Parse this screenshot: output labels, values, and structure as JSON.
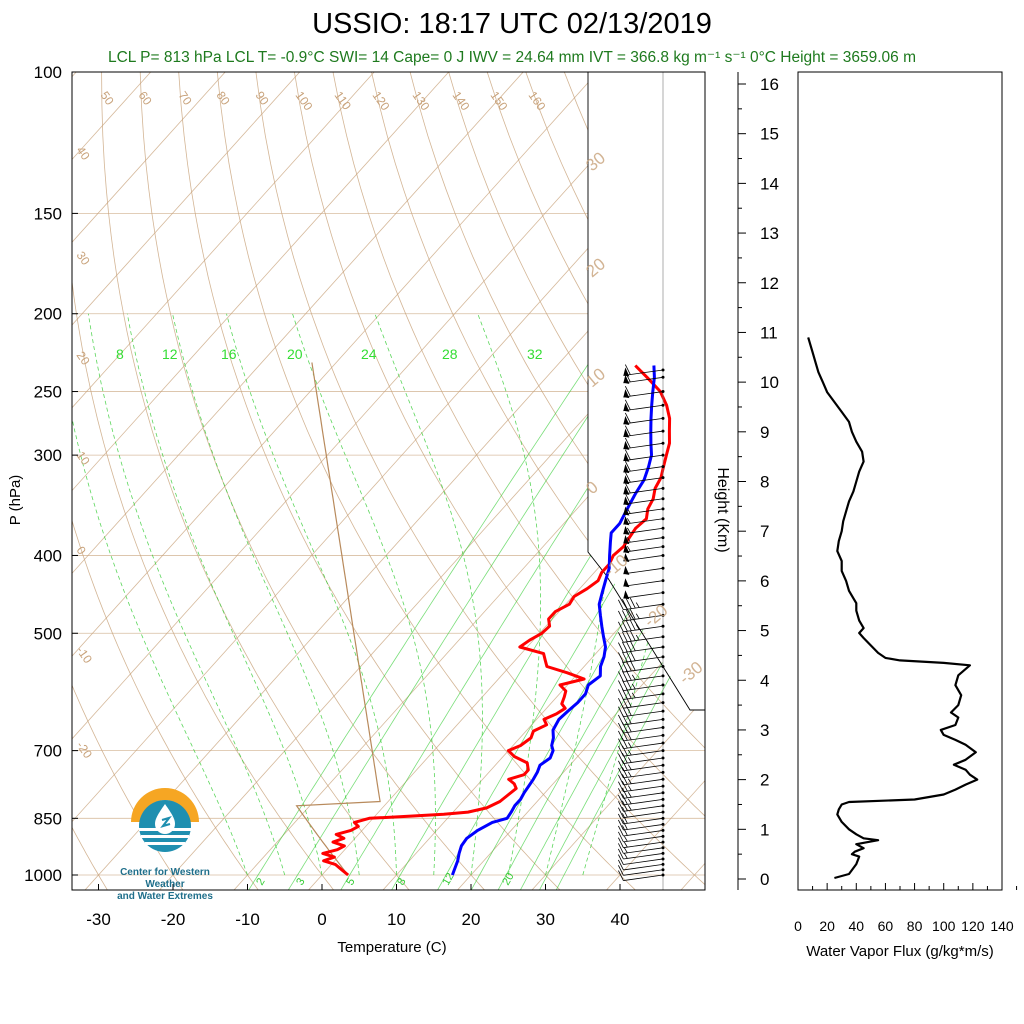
{
  "header": {
    "title": "USSIO: 18:17 UTC 02/13/2019",
    "subtitle": "LCL P= 813 hPa  LCL T= -0.9°C  SWI= 14  Cape= 0 J  IWV = 24.64 mm  IVT = 366.8 kg m⁻¹ s⁻¹  0°C Height = 3659.06 m"
  },
  "logo": {
    "line1": "Center for Western Weather",
    "line2": "and Water Extremes"
  },
  "colors": {
    "temperature": "#ff0000",
    "dewpoint": "#0000ff",
    "dry_adiabat": "#c8a27a",
    "mixing_ratio": "#33cc33",
    "flux": "#000000",
    "subtitle": "#1e7a1e"
  },
  "chart_data": [
    {
      "type": "line",
      "name": "skew-t",
      "xlabel": "Temperature (C)",
      "ylabel": "P (hPa)",
      "ylabel_right": "Height (Km)",
      "x_ticks": [
        "-30",
        "-20",
        "-10",
        "0",
        "10",
        "20",
        "30",
        "40"
      ],
      "y_ticks": [
        "100",
        "150",
        "200",
        "250",
        "300",
        "400",
        "500",
        "700",
        "850",
        "1000"
      ],
      "height_ticks": [
        "0",
        "1",
        "2",
        "3",
        "4",
        "5",
        "6",
        "7",
        "8",
        "9",
        "10",
        "11",
        "12",
        "13",
        "14",
        "15",
        "16"
      ],
      "theta_labels": [
        "50",
        "60",
        "70",
        "80",
        "90",
        "100",
        "110",
        "120",
        "130",
        "140",
        "150",
        "160"
      ],
      "theta_left_labels": [
        "40",
        "30",
        "20",
        "10",
        "0",
        "-10",
        "-20"
      ],
      "theta_e_labels": [
        "30",
        "20",
        "10",
        "0",
        "-10",
        "-20",
        "-30"
      ],
      "mixing_ratio_top_labels": [
        "8",
        "12",
        "16",
        "20",
        "24",
        "28",
        "32"
      ],
      "mixing_ratio_bottom_labels": [
        "2",
        "3",
        "5",
        "8",
        "12",
        "20"
      ],
      "series": [
        {
          "key": "temperature",
          "points": [
            [
              1000,
              3.5
            ],
            [
              985,
              2.0
            ],
            [
              970,
              0.5
            ],
            [
              960,
              -1.5
            ],
            [
              950,
              -0.5
            ],
            [
              940,
              -2.5
            ],
            [
              930,
              -1.0
            ],
            [
              920,
              -0.5
            ],
            [
              910,
              -2.5
            ],
            [
              900,
              -1.5
            ],
            [
              890,
              -3.0
            ],
            [
              880,
              -1.5
            ],
            [
              870,
              -1.0
            ],
            [
              860,
              -2.0
            ],
            [
              850,
              -0.5
            ],
            [
              845,
              4.5
            ],
            [
              840,
              9.0
            ],
            [
              835,
              12.0
            ],
            [
              825,
              14.0
            ],
            [
              810,
              15.0
            ],
            [
              795,
              15.3
            ],
            [
              780,
              15.6
            ],
            [
              770,
              14.8
            ],
            [
              760,
              13.5
            ],
            [
              750,
              15.0
            ],
            [
              740,
              15.0
            ],
            [
              725,
              14.0
            ],
            [
              712,
              11.5
            ],
            [
              700,
              10.0
            ],
            [
              690,
              11.0
            ],
            [
              675,
              11.5
            ],
            [
              662,
              11.0
            ],
            [
              650,
              12.0
            ],
            [
              640,
              11.0
            ],
            [
              630,
              12.0
            ],
            [
              620,
              12.5
            ],
            [
              612,
              11.5
            ],
            [
              600,
              11.0
            ],
            [
              590,
              10.5
            ],
            [
              580,
              9.0
            ],
            [
              570,
              11.5
            ],
            [
              560,
              8.5
            ],
            [
              550,
              5.0
            ],
            [
              540,
              4.0
            ],
            [
              530,
              3.0
            ],
            [
              520,
              -1.0
            ],
            [
              510,
              -0.5
            ],
            [
              500,
              0.3
            ],
            [
              490,
              0.5
            ],
            [
              480,
              -0.5
            ],
            [
              470,
              -0.5
            ],
            [
              460,
              0.5
            ],
            [
              450,
              0.2
            ],
            [
              440,
              1.0
            ],
            [
              430,
              1.5
            ],
            [
              420,
              1.0
            ],
            [
              410,
              1.0
            ],
            [
              400,
              0.5
            ],
            [
              390,
              0.8
            ],
            [
              380,
              0.5
            ],
            [
              370,
              0.2
            ],
            [
              360,
              0.5
            ],
            [
              350,
              -0.5
            ],
            [
              340,
              -1.0
            ],
            [
              330,
              -2.0
            ],
            [
              320,
              -2.5
            ],
            [
              310,
              -3.5
            ],
            [
              300,
              -4.5
            ],
            [
              290,
              -5.5
            ],
            [
              280,
              -7.0
            ],
            [
              270,
              -8.5
            ],
            [
              260,
              -10.5
            ],
            [
              250,
              -13.0
            ],
            [
              240,
              -16.5
            ],
            [
              232,
              -19.5
            ]
          ]
        },
        {
          "key": "dewpoint",
          "points": [
            [
              1000,
              17.5
            ],
            [
              980,
              17.0
            ],
            [
              960,
              16.5
            ],
            [
              940,
              15.8
            ],
            [
              920,
              15.2
            ],
            [
              900,
              15.0
            ],
            [
              880,
              15.5
            ],
            [
              860,
              16.5
            ],
            [
              850,
              18.0
            ],
            [
              835,
              17.8
            ],
            [
              820,
              17.5
            ],
            [
              805,
              17.5
            ],
            [
              790,
              17.2
            ],
            [
              775,
              17.0
            ],
            [
              760,
              16.8
            ],
            [
              745,
              16.5
            ],
            [
              730,
              16.0
            ],
            [
              715,
              16.5
            ],
            [
              700,
              16.0
            ],
            [
              690,
              15.2
            ],
            [
              675,
              14.5
            ],
            [
              660,
              13.5
            ],
            [
              640,
              13.0
            ],
            [
              625,
              13.2
            ],
            [
              610,
              13.5
            ],
            [
              595,
              13.5
            ],
            [
              580,
              12.8
            ],
            [
              565,
              13.3
            ],
            [
              550,
              12.2
            ],
            [
              535,
              11.5
            ],
            [
              520,
              10.5
            ],
            [
              505,
              9.0
            ],
            [
              490,
              7.5
            ],
            [
              475,
              6.0
            ],
            [
              460,
              4.5
            ],
            [
              445,
              3.5
            ],
            [
              430,
              2.5
            ],
            [
              415,
              1.5
            ],
            [
              400,
              0.0
            ],
            [
              385,
              -1.5
            ],
            [
              375,
              -2.5
            ],
            [
              365,
              -2.5
            ],
            [
              355,
              -3.0
            ],
            [
              345,
              -3.5
            ],
            [
              335,
              -4.0
            ],
            [
              322,
              -4.5
            ],
            [
              310,
              -5.5
            ],
            [
              300,
              -6.5
            ],
            [
              290,
              -8.0
            ],
            [
              280,
              -9.5
            ],
            [
              270,
              -11.0
            ],
            [
              260,
              -12.5
            ],
            [
              250,
              -14.0
            ],
            [
              240,
              -15.5
            ],
            [
              232,
              -17.0
            ]
          ]
        }
      ],
      "wind_barbs": {
        "levels": [
          1000,
          985,
          970,
          955,
          940,
          925,
          910,
          895,
          880,
          865,
          850,
          835,
          820,
          805,
          790,
          775,
          760,
          745,
          730,
          715,
          700,
          685,
          670,
          655,
          640,
          625,
          610,
          595,
          580,
          565,
          550,
          535,
          520,
          505,
          490,
          475,
          460,
          445,
          430,
          415,
          400,
          390,
          380,
          370,
          360,
          350,
          340,
          330,
          320,
          310,
          300,
          290,
          280,
          270,
          260,
          250,
          240,
          235
        ],
        "speeds_kt": [
          10,
          10,
          10,
          10,
          15,
          15,
          15,
          15,
          20,
          20,
          20,
          20,
          25,
          25,
          25,
          25,
          25,
          25,
          25,
          25,
          25,
          25,
          30,
          30,
          30,
          30,
          30,
          35,
          35,
          35,
          40,
          40,
          40,
          45,
          45,
          45,
          45,
          50,
          50,
          50,
          50,
          55,
          55,
          55,
          55,
          55,
          60,
          60,
          60,
          60,
          60,
          60,
          60,
          60,
          60,
          60,
          60,
          60
        ]
      }
    },
    {
      "type": "line",
      "name": "water-vapor-flux",
      "xlabel": "Water Vapor Flux (g/kg*m/s)",
      "x_ticks": [
        "0",
        "20",
        "40",
        "60",
        "80",
        "100",
        "120",
        "140"
      ],
      "xlim": [
        0,
        140
      ],
      "ylim_km": [
        0,
        16
      ],
      "series": [
        {
          "key": "flux",
          "points": [
            [
              0.02,
              25
            ],
            [
              0.1,
              35
            ],
            [
              0.3,
              40
            ],
            [
              0.45,
              42
            ],
            [
              0.5,
              37
            ],
            [
              0.55,
              39
            ],
            [
              0.62,
              45
            ],
            [
              0.7,
              40
            ],
            [
              0.78,
              55
            ],
            [
              0.82,
              45
            ],
            [
              0.9,
              40
            ],
            [
              1.0,
              35
            ],
            [
              1.15,
              30
            ],
            [
              1.3,
              27
            ],
            [
              1.4,
              28
            ],
            [
              1.5,
              30
            ],
            [
              1.55,
              35
            ],
            [
              1.6,
              80
            ],
            [
              1.7,
              100
            ],
            [
              1.8,
              108
            ],
            [
              1.9,
              115
            ],
            [
              2.0,
              123
            ],
            [
              2.1,
              118
            ],
            [
              2.2,
              115
            ],
            [
              2.3,
              107
            ],
            [
              2.4,
              115
            ],
            [
              2.55,
              122
            ],
            [
              2.7,
              115
            ],
            [
              2.8,
              108
            ],
            [
              2.9,
              100
            ],
            [
              3.0,
              98
            ],
            [
              3.1,
              108
            ],
            [
              3.25,
              110
            ],
            [
              3.35,
              105
            ],
            [
              3.5,
              110
            ],
            [
              3.7,
              112
            ],
            [
              3.9,
              108
            ],
            [
              4.1,
              110
            ],
            [
              4.3,
              118
            ],
            [
              4.35,
              100
            ],
            [
              4.4,
              70
            ],
            [
              4.45,
              60
            ],
            [
              4.55,
              55
            ],
            [
              4.7,
              50
            ],
            [
              4.85,
              45
            ],
            [
              4.95,
              42
            ],
            [
              5.05,
              45
            ],
            [
              5.2,
              42
            ],
            [
              5.4,
              40
            ],
            [
              5.55,
              40
            ],
            [
              5.65,
              38
            ],
            [
              5.8,
              35
            ],
            [
              6.0,
              33
            ],
            [
              6.2,
              30
            ],
            [
              6.4,
              30
            ],
            [
              6.6,
              27
            ],
            [
              6.8,
              28
            ],
            [
              7.0,
              30
            ],
            [
              7.2,
              31
            ],
            [
              7.4,
              33
            ],
            [
              7.6,
              35
            ],
            [
              7.8,
              38
            ],
            [
              8.0,
              40
            ],
            [
              8.2,
              42
            ],
            [
              8.4,
              45
            ],
            [
              8.6,
              44
            ],
            [
              8.8,
              40
            ],
            [
              9.0,
              37
            ],
            [
              9.2,
              35
            ],
            [
              9.4,
              30
            ],
            [
              9.6,
              25
            ],
            [
              9.8,
              20
            ],
            [
              10.0,
              17
            ],
            [
              10.2,
              14
            ],
            [
              10.4,
              12
            ],
            [
              10.6,
              10
            ],
            [
              10.9,
              7
            ]
          ]
        }
      ]
    }
  ]
}
